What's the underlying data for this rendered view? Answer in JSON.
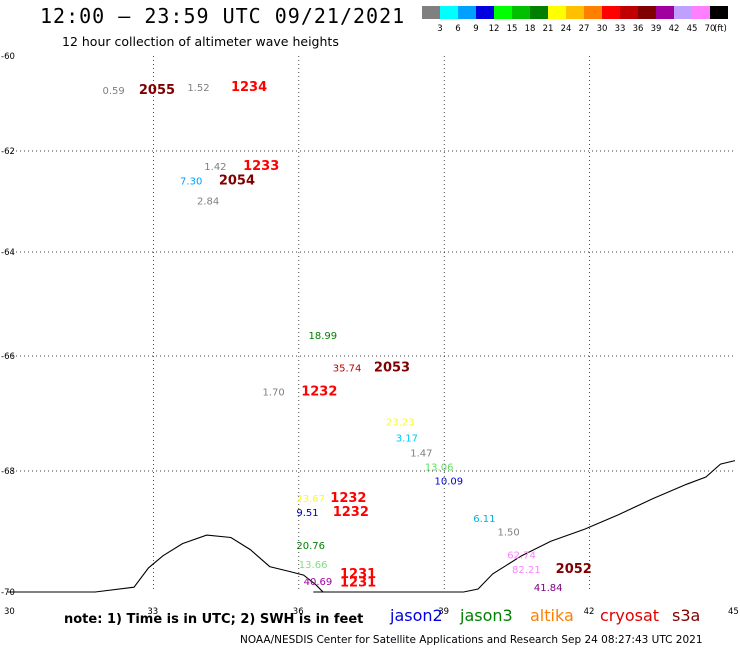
{
  "header": {
    "title": "12:00 – 23:59 UTC 09/21/2021",
    "subtitle": "12 hour collection of altimeter wave heights"
  },
  "legend": {
    "unit": "(ft)",
    "bins": [
      {
        "label": "3",
        "color": "#808080"
      },
      {
        "label": "6",
        "color": "#00ffff"
      },
      {
        "label": "9",
        "color": "#00a0ff"
      },
      {
        "label": "12",
        "color": "#0000e0"
      },
      {
        "label": "15",
        "color": "#00ff00"
      },
      {
        "label": "18",
        "color": "#00c000"
      },
      {
        "label": "21",
        "color": "#008000"
      },
      {
        "label": "24",
        "color": "#ffff00"
      },
      {
        "label": "27",
        "color": "#ffc000"
      },
      {
        "label": "30",
        "color": "#ff8000"
      },
      {
        "label": "33",
        "color": "#ff0000"
      },
      {
        "label": "36",
        "color": "#c00000"
      },
      {
        "label": "39",
        "color": "#800000"
      },
      {
        "label": "42",
        "color": "#a000a0"
      },
      {
        "label": "45",
        "color": "#c0a0ff"
      },
      {
        "label": "70",
        "color": "#ff80ff"
      },
      {
        "label": "",
        "color": "#000000"
      }
    ]
  },
  "axes": {
    "lon": [
      30,
      33,
      36,
      39,
      42,
      45
    ],
    "lat": [
      -60,
      -62,
      -64,
      -66,
      -68,
      -70
    ]
  },
  "observations": [
    {
      "text": "0.59",
      "lon": 31.95,
      "lat": -60.72,
      "color": "#808080",
      "kind": "value"
    },
    {
      "text": "2055",
      "lon": 32.7,
      "lat": -60.72,
      "color": "#800000",
      "kind": "time"
    },
    {
      "text": "1.52",
      "lon": 33.7,
      "lat": -60.65,
      "color": "#808080",
      "kind": "value"
    },
    {
      "text": "1234",
      "lon": 34.6,
      "lat": -60.65,
      "color": "#ff0000",
      "kind": "time"
    },
    {
      "text": "1.42",
      "lon": 34.05,
      "lat": -62.3,
      "color": "#808080",
      "kind": "value"
    },
    {
      "text": "1233",
      "lon": 34.85,
      "lat": -62.3,
      "color": "#ff0000",
      "kind": "time"
    },
    {
      "text": "7.30",
      "lon": 33.55,
      "lat": -62.58,
      "color": "#00a0ff",
      "kind": "value"
    },
    {
      "text": "2054",
      "lon": 34.35,
      "lat": -62.58,
      "color": "#800000",
      "kind": "time"
    },
    {
      "text": "2.84",
      "lon": 33.9,
      "lat": -62.98,
      "color": "#808080",
      "kind": "value"
    },
    {
      "text": "18.99",
      "lon": 36.2,
      "lat": -65.6,
      "color": "#008000",
      "kind": "value"
    },
    {
      "text": "35.74",
      "lon": 36.7,
      "lat": -66.2,
      "color": "#c00000",
      "kind": "value"
    },
    {
      "text": "2053",
      "lon": 37.55,
      "lat": -66.2,
      "color": "#800000",
      "kind": "time"
    },
    {
      "text": "1.70",
      "lon": 35.25,
      "lat": -66.62,
      "color": "#808080",
      "kind": "value"
    },
    {
      "text": "1232",
      "lon": 36.05,
      "lat": -66.62,
      "color": "#ff0000",
      "kind": "time"
    },
    {
      "text": "23.23",
      "lon": 37.8,
      "lat": -67.14,
      "color": "#ffff00",
      "kind": "value"
    },
    {
      "text": "3.17",
      "lon": 38.0,
      "lat": -67.42,
      "color": "#00c8ff",
      "kind": "value"
    },
    {
      "text": "1.47",
      "lon": 38.3,
      "lat": -67.68,
      "color": "#808080",
      "kind": "value"
    },
    {
      "text": "13.06",
      "lon": 38.6,
      "lat": -67.92,
      "color": "#60e060",
      "kind": "value"
    },
    {
      "text": "10.09",
      "lon": 38.8,
      "lat": -68.16,
      "color": "#0000e0",
      "kind": "value"
    },
    {
      "text": "23.67",
      "lon": 35.95,
      "lat": -68.45,
      "color": "#ffff00",
      "kind": "value"
    },
    {
      "text": "1232",
      "lon": 36.65,
      "lat": -68.45,
      "color": "#ff0000",
      "kind": "time"
    },
    {
      "text": "9.51",
      "lon": 35.95,
      "lat": -68.68,
      "color": "#0000a0",
      "kind": "value"
    },
    {
      "text": "1232",
      "lon": 36.7,
      "lat": -68.68,
      "color": "#ff0000",
      "kind": "time"
    },
    {
      "text": "6.11",
      "lon": 39.6,
      "lat": -68.78,
      "color": "#00b0e0",
      "kind": "value"
    },
    {
      "text": "1.50",
      "lon": 40.1,
      "lat": -69.0,
      "color": "#808080",
      "kind": "value"
    },
    {
      "text": "20.76",
      "lon": 35.95,
      "lat": -69.22,
      "color": "#008000",
      "kind": "value"
    },
    {
      "text": "62.74",
      "lon": 40.3,
      "lat": -69.38,
      "color": "#ff80ff",
      "kind": "value"
    },
    {
      "text": "13.66",
      "lon": 36.0,
      "lat": -69.54,
      "color": "#80e080",
      "kind": "value"
    },
    {
      "text": "82.21",
      "lon": 40.4,
      "lat": -69.62,
      "color": "#ff80ff",
      "kind": "value"
    },
    {
      "text": "2052",
      "lon": 41.3,
      "lat": -69.62,
      "color": "#800000",
      "kind": "time"
    },
    {
      "text": "1231",
      "lon": 36.85,
      "lat": -69.7,
      "color": "#ff0000",
      "kind": "time"
    },
    {
      "text": "40.69",
      "lon": 36.1,
      "lat": -69.82,
      "color": "#a000a0",
      "kind": "value"
    },
    {
      "text": "1231",
      "lon": 36.85,
      "lat": -69.84,
      "color": "#ff0000",
      "kind": "time"
    },
    {
      "text": "41.84",
      "lon": 40.85,
      "lat": -69.92,
      "color": "#800080",
      "kind": "value"
    }
  ],
  "coastline": [
    [
      30.0,
      -70.7
    ],
    [
      30.9,
      -70.45
    ],
    [
      31.8,
      -70.2
    ],
    [
      32.6,
      -69.92
    ],
    [
      32.9,
      -69.6
    ],
    [
      33.2,
      -69.4
    ],
    [
      33.6,
      -69.2
    ],
    [
      34.1,
      -69.06
    ],
    [
      34.6,
      -69.1
    ],
    [
      35.0,
      -69.3
    ],
    [
      35.4,
      -69.58
    ],
    [
      35.8,
      -69.66
    ],
    [
      36.1,
      -69.72
    ],
    [
      36.35,
      -69.88
    ],
    [
      36.5,
      -70.02
    ],
    [
      36.3,
      -70.1
    ],
    [
      36.75,
      -70.2
    ],
    [
      37.05,
      -70.06
    ],
    [
      37.3,
      -70.2
    ],
    [
      37.6,
      -70.26
    ],
    [
      37.9,
      -70.22
    ],
    [
      38.1,
      -70.3
    ],
    [
      38.4,
      -70.22
    ],
    [
      38.55,
      -70.38
    ],
    [
      38.8,
      -70.3
    ],
    [
      39.1,
      -70.18
    ],
    [
      39.4,
      -70.1
    ],
    [
      39.7,
      -69.95
    ],
    [
      40.0,
      -69.7
    ],
    [
      40.3,
      -69.55
    ],
    [
      40.6,
      -69.4
    ],
    [
      41.2,
      -69.16
    ],
    [
      41.9,
      -68.96
    ],
    [
      42.6,
      -68.72
    ],
    [
      43.3,
      -68.46
    ],
    [
      44.0,
      -68.22
    ],
    [
      44.4,
      -68.1
    ],
    [
      44.7,
      -67.88
    ],
    [
      45.0,
      -67.82
    ]
  ],
  "note": "note: 1) Time is in UTC; 2) SWH is in feet",
  "satellites": [
    {
      "name": "jason2",
      "color": "#0000e0"
    },
    {
      "name": "jason3",
      "color": "#008000"
    },
    {
      "name": "altika",
      "color": "#ff8000"
    },
    {
      "name": "cryosat",
      "color": "#e00000"
    },
    {
      "name": "s3a",
      "color": "#800000"
    }
  ],
  "credit": "NOAA/NESDIS Center for Satellite Applications and Research    Sep 24 08:27:43 UTC 2021"
}
